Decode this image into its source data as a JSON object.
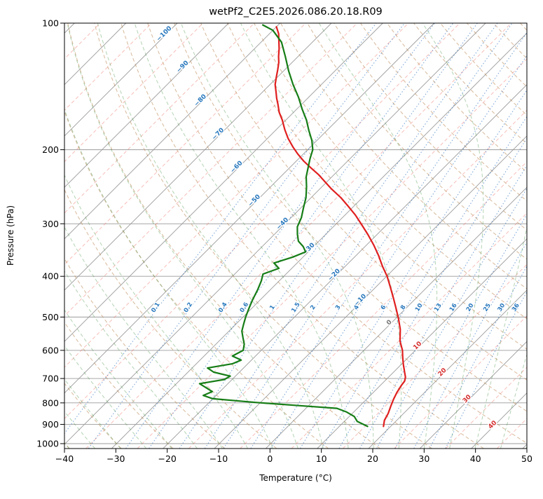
{
  "title": "wetPf2_C2E5.2026.086.20.18.R09",
  "axes": {
    "x_label": "Temperature (°C)",
    "y_label": "Pressure (hPa)",
    "x_ticks": [
      -40,
      -30,
      -20,
      -10,
      0,
      10,
      20,
      30,
      40,
      50
    ],
    "y_ticks": [
      100,
      200,
      300,
      400,
      500,
      600,
      700,
      800,
      900,
      1000
    ],
    "x_range": [
      -40,
      50
    ],
    "p_top": 100,
    "p_bottom": 1027
  },
  "style": {
    "temperature": "#e01f1f",
    "dewpoint": "#167d16",
    "grid": "#9b9b9b",
    "frame": "#000000",
    "isotherm_minor": "rgba(235,110,100,0.45)",
    "dry_adiabat": "rgba(188,139,87,0.60)",
    "moist_adiabat": "rgba(56,140,56,0.38)",
    "mixing_line": "rgba(42,110,190,0.60)",
    "isotherm_label_neg": "#2878be",
    "isotherm_label_zero": "#777777",
    "isotherm_label_pos": "#d62f2f",
    "mixing_label": "#2878be"
  },
  "chart_data": {
    "type": "line",
    "subtype": "skewT-logP",
    "skew_deg": 45,
    "title": "wetPf2_C2E5.2026.086.20.18.R09",
    "xlabel": "Temperature (°C)",
    "ylabel": "Pressure (hPa)",
    "x_range_c": [
      -40,
      50
    ],
    "pressure_range_hpa": [
      100,
      1027
    ],
    "grid": true,
    "isotherm_label_values": [
      -100,
      -90,
      -80,
      -70,
      -60,
      -50,
      -40,
      -30,
      -20,
      -10,
      0,
      10,
      20,
      30,
      40
    ],
    "mixing_ratio_values": [
      0.1,
      0.2,
      0.4,
      0.6,
      1,
      1.5,
      2,
      3,
      4,
      6,
      8,
      10,
      13,
      16,
      20,
      25,
      30,
      36
    ],
    "dry_adiabats_theta_c": [
      -40,
      -30,
      -20,
      -10,
      0,
      10,
      20,
      30,
      40,
      50,
      60,
      70,
      80,
      90,
      100,
      110,
      120,
      130,
      140,
      150,
      160,
      170,
      180,
      190
    ],
    "moist_adiabats_t0_c": [
      -40,
      -35,
      -30,
      -25,
      -20,
      -15,
      -10,
      -5,
      0,
      5,
      10,
      15,
      20,
      25,
      30,
      35,
      40,
      45,
      50
    ],
    "series": [
      {
        "name": "temperature",
        "units": {
          "pressure": "hPa",
          "temperature": "°C"
        },
        "points": [
          [
            910,
            18.6
          ],
          [
            880,
            17.6
          ],
          [
            848,
            17.0
          ],
          [
            815,
            16.1
          ],
          [
            785,
            15.3
          ],
          [
            755,
            14.6
          ],
          [
            727,
            14.1
          ],
          [
            710,
            13.9
          ],
          [
            695,
            13.3
          ],
          [
            672,
            11.9
          ],
          [
            648,
            10.4
          ],
          [
            625,
            9.0
          ],
          [
            600,
            7.5
          ],
          [
            570,
            5.2
          ],
          [
            535,
            3.0
          ],
          [
            505,
            0.6
          ],
          [
            477,
            -1.9
          ],
          [
            450,
            -4.5
          ],
          [
            425,
            -7.1
          ],
          [
            400,
            -9.9
          ],
          [
            379,
            -12.7
          ],
          [
            357,
            -15.6
          ],
          [
            337,
            -18.6
          ],
          [
            318,
            -21.8
          ],
          [
            301,
            -25.0
          ],
          [
            286,
            -28.0
          ],
          [
            273,
            -31.0
          ],
          [
            260,
            -34.2
          ],
          [
            248,
            -37.7
          ],
          [
            238,
            -40.5
          ],
          [
            229,
            -43.1
          ],
          [
            221,
            -45.8
          ],
          [
            213,
            -48.5
          ],
          [
            205,
            -51.0
          ],
          [
            197,
            -53.4
          ],
          [
            188,
            -56.0
          ],
          [
            179,
            -58.4
          ],
          [
            170,
            -60.7
          ],
          [
            163,
            -62.8
          ],
          [
            156,
            -64.6
          ],
          [
            151,
            -66.0
          ],
          [
            145,
            -67.6
          ],
          [
            140,
            -69.0
          ],
          [
            134,
            -70.3
          ],
          [
            129,
            -71.4
          ],
          [
            124,
            -72.6
          ],
          [
            120,
            -73.8
          ],
          [
            115,
            -75.2
          ],
          [
            111,
            -76.5
          ],
          [
            106,
            -78.2
          ],
          [
            102,
            -80.0
          ]
        ]
      },
      {
        "name": "dewpoint",
        "units": {
          "pressure": "hPa",
          "temperature": "°C"
        },
        "points": [
          [
            910,
            15.5
          ],
          [
            885,
            12.5
          ],
          [
            862,
            11.0
          ],
          [
            840,
            8.5
          ],
          [
            824,
            6.0
          ],
          [
            812,
            -2.0
          ],
          [
            798,
            -11.0
          ],
          [
            782,
            -20.0
          ],
          [
            768,
            -22.5
          ],
          [
            752,
            -21.5
          ],
          [
            736,
            -23.5
          ],
          [
            720,
            -25.5
          ],
          [
            704,
            -21.5
          ],
          [
            691,
            -21.0
          ],
          [
            676,
            -25.0
          ],
          [
            661,
            -27.0
          ],
          [
            646,
            -23.0
          ],
          [
            633,
            -22.0
          ],
          [
            619,
            -24.5
          ],
          [
            600,
            -23.5
          ],
          [
            580,
            -24.5
          ],
          [
            560,
            -26.0
          ],
          [
            540,
            -27.5
          ],
          [
            520,
            -28.5
          ],
          [
            500,
            -29.5
          ],
          [
            478,
            -30.5
          ],
          [
            455,
            -31.5
          ],
          [
            430,
            -32.5
          ],
          [
            410,
            -33.5
          ],
          [
            395,
            -34.5
          ],
          [
            383,
            -32.5
          ],
          [
            372,
            -34.5
          ],
          [
            360,
            -32.0
          ],
          [
            350,
            -30.5
          ],
          [
            340,
            -32.0
          ],
          [
            330,
            -34.0
          ],
          [
            318,
            -35.5
          ],
          [
            305,
            -37.0
          ],
          [
            290,
            -38.0
          ],
          [
            275,
            -39.5
          ],
          [
            260,
            -41.0
          ],
          [
            245,
            -43.0
          ],
          [
            232,
            -45.0
          ],
          [
            220,
            -46.5
          ],
          [
            210,
            -47.8
          ],
          [
            200,
            -49.0
          ],
          [
            190,
            -51.0
          ],
          [
            180,
            -53.5
          ],
          [
            170,
            -56.0
          ],
          [
            160,
            -59.0
          ],
          [
            150,
            -62.0
          ],
          [
            140,
            -65.5
          ],
          [
            130,
            -69.0
          ],
          [
            120,
            -72.5
          ],
          [
            111,
            -76.0
          ],
          [
            104,
            -80.0
          ],
          [
            101,
            -83.0
          ]
        ]
      }
    ]
  }
}
